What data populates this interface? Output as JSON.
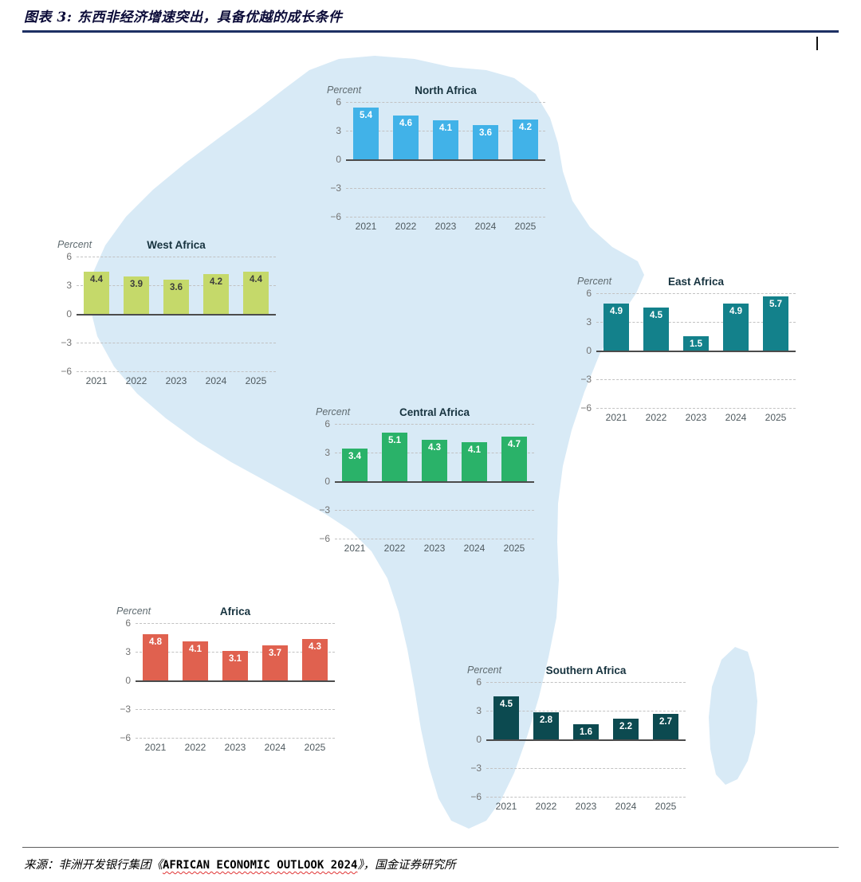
{
  "page": {
    "title": "图表 3: 东西非经济增速突出，具备优越的成长条件",
    "source_prefix": "来源：非洲开发银行集团《",
    "source_english": "AFRICAN ECONOMIC OUTLOOK 2024",
    "source_suffix": "》，国金证券研究所"
  },
  "colors": {
    "map_fill": "#d8eaf6",
    "title_rule": "#1d2f63",
    "gridline": "#c2c2c2",
    "zero_line": "#4c4c4c",
    "axis_text": "#737373"
  },
  "chart_data": [
    {
      "type": "bar",
      "title": "North Africa",
      "ylabel": "Percent",
      "categories": [
        "2021",
        "2022",
        "2023",
        "2024",
        "2025"
      ],
      "values": [
        5.4,
        4.6,
        4.1,
        3.6,
        4.2
      ],
      "ylim": [
        -6,
        6
      ],
      "yticks": [
        6,
        3,
        0,
        -3,
        -6
      ],
      "grid": "dashed",
      "legend": "none",
      "bar_color": "#41b2e8",
      "value_label_color": "#ffffff",
      "layout": {
        "left": 408,
        "top": 94
      }
    },
    {
      "type": "bar",
      "title": "West Africa",
      "ylabel": "Percent",
      "categories": [
        "2021",
        "2022",
        "2023",
        "2024",
        "2025"
      ],
      "values": [
        4.4,
        3.9,
        3.6,
        4.2,
        4.4
      ],
      "ylim": [
        -6,
        6
      ],
      "yticks": [
        6,
        3,
        0,
        -3,
        -6
      ],
      "grid": "dashed",
      "legend": "none",
      "bar_color": "#c5d96a",
      "value_label_color": "#3d3d3d",
      "layout": {
        "left": 70,
        "top": 288
      }
    },
    {
      "type": "bar",
      "title": "East Africa",
      "ylabel": "Percent",
      "categories": [
        "2021",
        "2022",
        "2023",
        "2024",
        "2025"
      ],
      "values": [
        4.9,
        4.5,
        1.5,
        4.9,
        5.7
      ],
      "ylim": [
        -6,
        6
      ],
      "yticks": [
        6,
        3,
        0,
        -3,
        -6
      ],
      "grid": "dashed",
      "legend": "none",
      "bar_color": "#13818b",
      "value_label_color": "#ffffff",
      "layout": {
        "left": 722,
        "top": 334
      }
    },
    {
      "type": "bar",
      "title": "Central Africa",
      "ylabel": "Percent",
      "categories": [
        "2021",
        "2022",
        "2023",
        "2024",
        "2025"
      ],
      "values": [
        3.4,
        5.1,
        4.3,
        4.1,
        4.7
      ],
      "ylim": [
        -6,
        6
      ],
      "yticks": [
        6,
        3,
        0,
        -3,
        -6
      ],
      "grid": "dashed",
      "legend": "none",
      "bar_color": "#2ab269",
      "value_label_color": "#ffffff",
      "layout": {
        "left": 394,
        "top": 498
      }
    },
    {
      "type": "bar",
      "title": "Africa",
      "ylabel": "Percent",
      "categories": [
        "2021",
        "2022",
        "2023",
        "2024",
        "2025"
      ],
      "values": [
        4.8,
        4.1,
        3.1,
        3.7,
        4.3
      ],
      "ylim": [
        -6,
        6
      ],
      "yticks": [
        6,
        3,
        0,
        -3,
        -6
      ],
      "grid": "dashed",
      "legend": "none",
      "bar_color": "#e0614f",
      "value_label_color": "#ffffff",
      "layout": {
        "left": 144,
        "top": 748
      }
    },
    {
      "type": "bar",
      "title": "Southern Africa",
      "ylabel": "Percent",
      "categories": [
        "2021",
        "2022",
        "2023",
        "2024",
        "2025"
      ],
      "values": [
        4.5,
        2.8,
        1.6,
        2.2,
        2.7
      ],
      "ylim": [
        -6,
        6
      ],
      "yticks": [
        6,
        3,
        0,
        -3,
        -6
      ],
      "grid": "dashed",
      "legend": "none",
      "bar_color": "#0c4a50",
      "value_label_color": "#ffffff",
      "layout": {
        "left": 584,
        "top": 822
      }
    }
  ]
}
